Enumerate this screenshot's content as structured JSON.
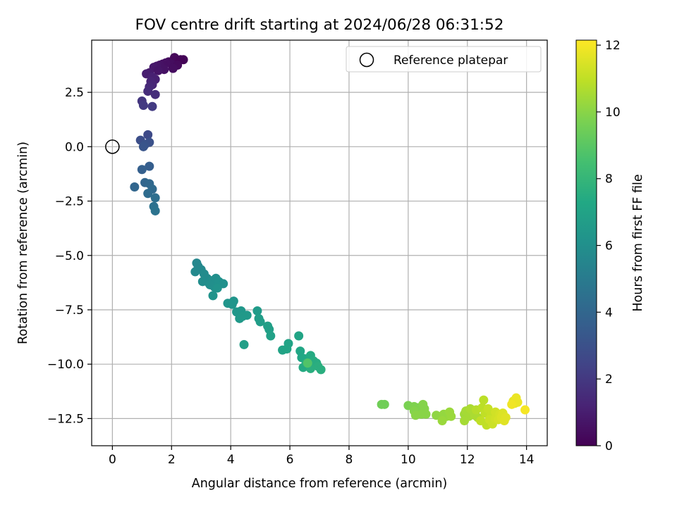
{
  "chart_data": {
    "type": "scatter",
    "title": "FOV centre drift starting at 2024/06/28 06:31:52",
    "xlabel": "Angular distance from reference (arcmin)",
    "ylabel": "Rotation from reference (arcmin)",
    "xlim": [
      -0.7,
      14.7
    ],
    "ylim": [
      -13.75,
      4.9
    ],
    "xticks": [
      0,
      2,
      4,
      6,
      8,
      10,
      12,
      14
    ],
    "xtick_labels": [
      "0",
      "2",
      "4",
      "6",
      "8",
      "10",
      "12",
      "14"
    ],
    "yticks": [
      2.5,
      0.0,
      -2.5,
      -5.0,
      -7.5,
      -10.0,
      -12.5
    ],
    "ytick_labels": [
      "2.5",
      "0.0",
      "−2.5",
      "−5.0",
      "−7.5",
      "−10.0",
      "−12.5"
    ],
    "grid": true,
    "legend": {
      "position": "top-right",
      "entries": [
        {
          "label": "Reference platepar",
          "marker": "open-circle",
          "x": 0,
          "y": 0
        }
      ]
    },
    "colorbar": {
      "label": "Hours from first FF file",
      "colormap": "viridis",
      "range": [
        0,
        12.15
      ],
      "ticks": [
        0,
        2,
        4,
        6,
        8,
        10,
        12
      ],
      "tick_labels": [
        "0",
        "2",
        "4",
        "6",
        "8",
        "10",
        "12"
      ]
    },
    "points": [
      [
        2.1,
        4.1,
        0.2
      ],
      [
        2.3,
        4.0,
        0.1
      ],
      [
        2.4,
        4.0,
        0.1
      ],
      [
        1.9,
        3.9,
        0.3
      ],
      [
        2.0,
        3.8,
        0.4
      ],
      [
        1.8,
        3.85,
        0.5
      ],
      [
        1.7,
        3.8,
        0.5
      ],
      [
        1.6,
        3.75,
        0.6
      ],
      [
        1.5,
        3.7,
        0.7
      ],
      [
        1.4,
        3.65,
        0.8
      ],
      [
        2.2,
        3.75,
        0.3
      ],
      [
        2.05,
        3.6,
        0.4
      ],
      [
        1.75,
        3.55,
        0.6
      ],
      [
        1.55,
        3.5,
        0.7
      ],
      [
        1.25,
        3.4,
        0.9
      ],
      [
        1.15,
        3.35,
        1.0
      ],
      [
        1.35,
        3.2,
        1.1
      ],
      [
        1.45,
        3.1,
        1.1
      ],
      [
        1.3,
        3.0,
        1.2
      ],
      [
        1.35,
        2.85,
        1.3
      ],
      [
        1.25,
        2.75,
        1.4
      ],
      [
        1.2,
        2.55,
        1.5
      ],
      [
        1.45,
        2.4,
        1.6
      ],
      [
        1.0,
        2.1,
        1.9
      ],
      [
        1.05,
        1.9,
        2.0
      ],
      [
        1.35,
        1.85,
        2.1
      ],
      [
        1.2,
        0.55,
        2.7
      ],
      [
        0.95,
        0.3,
        2.9
      ],
      [
        1.25,
        0.2,
        3.0
      ],
      [
        1.1,
        0.1,
        3.1
      ],
      [
        1.05,
        0.0,
        3.2
      ],
      [
        1.25,
        -0.9,
        3.6
      ],
      [
        1.0,
        -1.05,
        3.7
      ],
      [
        0.75,
        -1.85,
        4.0
      ],
      [
        1.1,
        -1.65,
        4.0
      ],
      [
        1.25,
        -1.7,
        4.1
      ],
      [
        1.35,
        -1.95,
        4.2
      ],
      [
        1.2,
        -2.15,
        4.3
      ],
      [
        1.45,
        -2.35,
        4.4
      ],
      [
        1.4,
        -2.75,
        4.5
      ],
      [
        1.45,
        -2.95,
        4.6
      ],
      [
        2.85,
        -5.35,
        5.6
      ],
      [
        2.9,
        -5.5,
        5.6
      ],
      [
        3.0,
        -5.65,
        5.7
      ],
      [
        2.8,
        -5.75,
        5.7
      ],
      [
        3.1,
        -5.85,
        5.8
      ],
      [
        3.2,
        -6.05,
        5.8
      ],
      [
        3.05,
        -6.2,
        5.9
      ],
      [
        3.25,
        -6.25,
        5.9
      ],
      [
        3.4,
        -6.15,
        6.0
      ],
      [
        3.5,
        -6.05,
        6.0
      ],
      [
        3.6,
        -6.2,
        6.1
      ],
      [
        3.75,
        -6.3,
        6.1
      ],
      [
        3.45,
        -6.45,
        6.1
      ],
      [
        3.3,
        -6.35,
        6.0
      ],
      [
        3.55,
        -6.5,
        6.2
      ],
      [
        3.4,
        -6.85,
        6.2
      ],
      [
        3.9,
        -7.2,
        6.3
      ],
      [
        4.1,
        -7.1,
        6.3
      ],
      [
        4.05,
        -7.25,
        6.3
      ],
      [
        4.2,
        -7.6,
        6.4
      ],
      [
        4.35,
        -7.55,
        6.4
      ],
      [
        4.4,
        -7.8,
        6.5
      ],
      [
        4.55,
        -7.75,
        6.5
      ],
      [
        4.3,
        -7.9,
        6.5
      ],
      [
        4.45,
        -9.1,
        6.8
      ],
      [
        4.9,
        -7.55,
        6.6
      ],
      [
        4.95,
        -7.9,
        6.7
      ],
      [
        5.0,
        -8.05,
        6.7
      ],
      [
        5.25,
        -8.25,
        6.8
      ],
      [
        5.3,
        -8.4,
        6.8
      ],
      [
        5.35,
        -8.7,
        6.9
      ],
      [
        5.75,
        -9.35,
        7.0
      ],
      [
        5.95,
        -9.05,
        7.0
      ],
      [
        5.9,
        -9.3,
        7.1
      ],
      [
        6.3,
        -8.7,
        7.1
      ],
      [
        6.35,
        -9.4,
        7.2
      ],
      [
        6.4,
        -9.7,
        7.2
      ],
      [
        6.5,
        -9.75,
        7.3
      ],
      [
        6.6,
        -9.85,
        7.3
      ],
      [
        6.7,
        -9.6,
        7.4
      ],
      [
        6.45,
        -10.15,
        7.4
      ],
      [
        6.55,
        -9.95,
        7.5
      ],
      [
        6.8,
        -9.85,
        7.5
      ],
      [
        6.9,
        -9.95,
        7.5
      ],
      [
        6.95,
        -10.1,
        7.6
      ],
      [
        6.7,
        -10.2,
        7.6
      ],
      [
        7.05,
        -10.25,
        7.6
      ],
      [
        6.6,
        -9.95,
        8.8
      ],
      [
        9.1,
        -11.85,
        9.5
      ],
      [
        9.2,
        -11.85,
        9.5
      ],
      [
        10.0,
        -11.9,
        9.7
      ],
      [
        10.2,
        -11.95,
        9.8
      ],
      [
        10.35,
        -12.0,
        9.8
      ],
      [
        10.5,
        -11.85,
        9.9
      ],
      [
        10.55,
        -12.05,
        9.9
      ],
      [
        10.2,
        -12.15,
        9.9
      ],
      [
        10.45,
        -12.3,
        10.0
      ],
      [
        10.6,
        -12.3,
        10.0
      ],
      [
        10.25,
        -12.35,
        10.0
      ],
      [
        10.95,
        -12.35,
        10.1
      ],
      [
        11.2,
        -12.3,
        10.2
      ],
      [
        11.3,
        -12.4,
        10.2
      ],
      [
        11.4,
        -12.2,
        10.3
      ],
      [
        11.45,
        -12.4,
        10.3
      ],
      [
        11.15,
        -12.6,
        10.3
      ],
      [
        11.9,
        -12.3,
        10.4
      ],
      [
        11.95,
        -12.15,
        10.5
      ],
      [
        12.05,
        -12.4,
        10.5
      ],
      [
        11.9,
        -12.6,
        10.5
      ],
      [
        12.1,
        -12.05,
        10.6
      ],
      [
        12.25,
        -12.35,
        10.6
      ],
      [
        12.35,
        -12.45,
        10.6
      ],
      [
        12.3,
        -12.1,
        10.8
      ],
      [
        12.5,
        -12.0,
        10.9
      ],
      [
        12.55,
        -11.65,
        10.9
      ],
      [
        12.6,
        -12.25,
        11.0
      ],
      [
        12.45,
        -12.6,
        11.0
      ],
      [
        12.65,
        -12.8,
        11.0
      ],
      [
        12.7,
        -12.05,
        11.1
      ],
      [
        12.8,
        -12.35,
        11.1
      ],
      [
        12.75,
        -12.55,
        11.2
      ],
      [
        12.85,
        -12.75,
        11.2
      ],
      [
        12.95,
        -12.5,
        11.3
      ],
      [
        12.95,
        -12.2,
        11.3
      ],
      [
        13.05,
        -12.55,
        11.4
      ],
      [
        13.1,
        -12.3,
        11.4
      ],
      [
        13.15,
        -12.45,
        11.5
      ],
      [
        13.2,
        -12.25,
        11.5
      ],
      [
        13.25,
        -12.6,
        11.6
      ],
      [
        13.3,
        -12.45,
        11.6
      ],
      [
        13.55,
        -11.7,
        11.7
      ],
      [
        13.6,
        -11.8,
        11.7
      ],
      [
        13.65,
        -11.55,
        11.8
      ],
      [
        13.7,
        -11.75,
        11.8
      ],
      [
        13.5,
        -11.85,
        11.9
      ],
      [
        13.95,
        -12.1,
        12.0
      ]
    ]
  }
}
